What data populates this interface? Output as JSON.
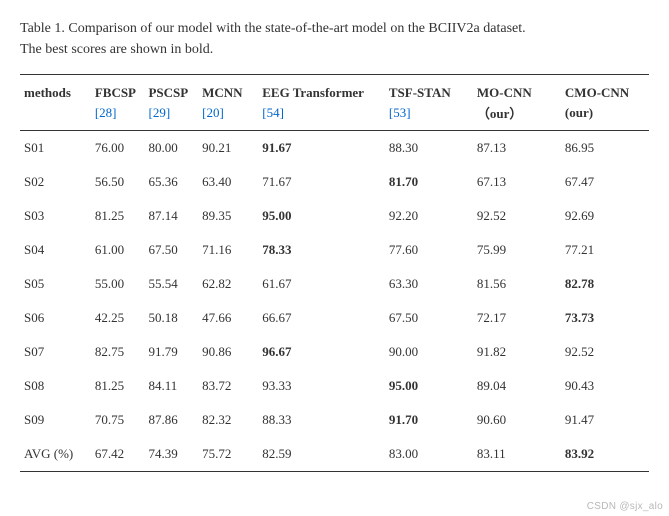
{
  "caption": {
    "label": "Table 1.",
    "text_line1": "Comparison of our model with the state-of-the-art model on the BCIIV2a dataset.",
    "text_line2": "The best scores are shown in bold."
  },
  "columns": {
    "methods": "methods",
    "fbcsp": "FBCSP",
    "pscsp": "PSCSP",
    "mcnn": "MCNN",
    "eegtr": "EEG Transformer",
    "tsfstan": "TSF-STAN",
    "mocnn": "MO-CNN",
    "cmocnn": "CMO-CNN"
  },
  "refs": {
    "fbcsp": "[28]",
    "pscsp": "[29]",
    "mcnn": "[20]",
    "eegtr": "[54]",
    "tsfstan": "[53]",
    "mocnn": "（our）",
    "cmocnn": "(our)"
  },
  "col_widths": {
    "methods": 66,
    "fbcsp": 50,
    "pscsp": 50,
    "mcnn": 56,
    "eegtr": 118,
    "tsfstan": 82,
    "mocnn": 82,
    "cmocnn": 82
  },
  "bold_map": {
    "S01": [
      false,
      false,
      false,
      true,
      false,
      false,
      false
    ],
    "S02": [
      false,
      false,
      false,
      false,
      true,
      false,
      false
    ],
    "S03": [
      false,
      false,
      false,
      true,
      false,
      false,
      false
    ],
    "S04": [
      false,
      false,
      false,
      true,
      false,
      false,
      false
    ],
    "S05": [
      false,
      false,
      false,
      false,
      false,
      false,
      true
    ],
    "S06": [
      false,
      false,
      false,
      false,
      false,
      false,
      true
    ],
    "S07": [
      false,
      false,
      false,
      true,
      false,
      false,
      false
    ],
    "S08": [
      false,
      false,
      false,
      false,
      true,
      false,
      false
    ],
    "S09": [
      false,
      false,
      false,
      false,
      true,
      false,
      false
    ],
    "AVG": [
      false,
      false,
      false,
      false,
      false,
      false,
      true
    ]
  },
  "rows": [
    {
      "label": "S01",
      "vals": [
        "76.00",
        "80.00",
        "90.21",
        "91.67",
        "88.30",
        "87.13",
        "86.95"
      ]
    },
    {
      "label": "S02",
      "vals": [
        "56.50",
        "65.36",
        "63.40",
        "71.67",
        "81.70",
        "67.13",
        "67.47"
      ]
    },
    {
      "label": "S03",
      "vals": [
        "81.25",
        "87.14",
        "89.35",
        "95.00",
        "92.20",
        "92.52",
        "92.69"
      ]
    },
    {
      "label": "S04",
      "vals": [
        "61.00",
        "67.50",
        "71.16",
        "78.33",
        "77.60",
        "75.99",
        "77.21"
      ]
    },
    {
      "label": "S05",
      "vals": [
        "55.00",
        "55.54",
        "62.82",
        "61.67",
        "63.30",
        "81.56",
        "82.78"
      ]
    },
    {
      "label": "S06",
      "vals": [
        "42.25",
        "50.18",
        "47.66",
        "66.67",
        "67.50",
        "72.17",
        "73.73"
      ]
    },
    {
      "label": "S07",
      "vals": [
        "82.75",
        "91.79",
        "90.86",
        "96.67",
        "90.00",
        "91.82",
        "92.52"
      ]
    },
    {
      "label": "S08",
      "vals": [
        "81.25",
        "84.11",
        "83.72",
        "93.33",
        "95.00",
        "89.04",
        "90.43"
      ]
    },
    {
      "label": "S09",
      "vals": [
        "70.75",
        "87.86",
        "82.32",
        "88.33",
        "91.70",
        "90.60",
        "91.47"
      ]
    },
    {
      "label": "AVG (%)",
      "key": "AVG",
      "vals": [
        "67.42",
        "74.39",
        "75.72",
        "82.59",
        "83.00",
        "83.11",
        "83.92"
      ]
    }
  ],
  "colors": {
    "text": "#333333",
    "link": "#0066cc",
    "rule": "#333333",
    "watermark": "#b8b8b8",
    "background": "#ffffff"
  },
  "watermark": "CSDN @sjx_alo"
}
